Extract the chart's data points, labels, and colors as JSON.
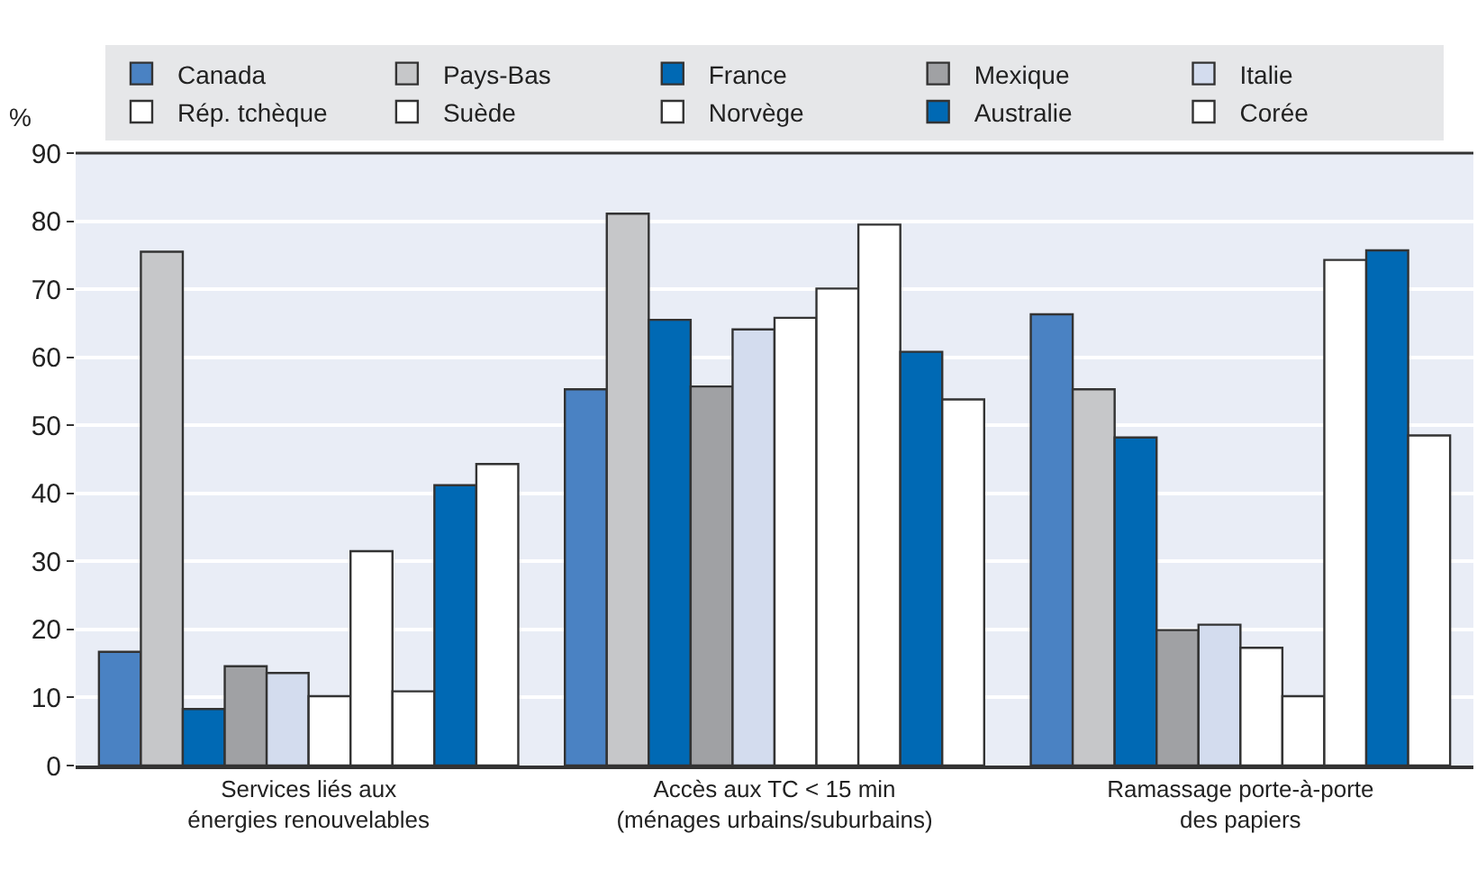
{
  "chart_data": {
    "type": "bar",
    "ylabel": "%",
    "categories": [
      "Services liés aux\nénergies renouvelables",
      "Accès aux TC < 15 min\n(ménages urbains/suburbains)",
      "Ramassage porte-à-porte\ndes papiers"
    ],
    "series": [
      {
        "name": "Canada",
        "color": "#4a82c3",
        "values": [
          16.7,
          55.3,
          66.3
        ]
      },
      {
        "name": "Pays-Bas",
        "color": "#c6c7c9",
        "values": [
          75.5,
          81.1,
          55.3
        ]
      },
      {
        "name": "France",
        "color": "#0069b4",
        "values": [
          8.3,
          65.5,
          48.2
        ]
      },
      {
        "name": "Mexique",
        "color": "#a0a1a4",
        "values": [
          14.6,
          55.7,
          19.9
        ]
      },
      {
        "name": "Italie",
        "color": "#d3dcee",
        "values": [
          13.6,
          64.1,
          20.7
        ]
      },
      {
        "name": "Rép. tchèque",
        "color": "#ffffff",
        "values": [
          10.2,
          65.8,
          17.3
        ]
      },
      {
        "name": "Suède",
        "color": "#ffffff",
        "values": [
          31.5,
          70.1,
          10.2
        ]
      },
      {
        "name": "Norvège",
        "color": "#ffffff",
        "values": [
          10.9,
          79.5,
          74.3
        ]
      },
      {
        "name": "Australie",
        "color": "#0069b4",
        "values": [
          41.2,
          60.8,
          75.7
        ]
      },
      {
        "name": "Corée",
        "color": "#ffffff",
        "values": [
          44.3,
          53.8,
          48.5
        ]
      }
    ],
    "ylim": [
      0,
      90
    ],
    "yticks": [
      0,
      10,
      20,
      30,
      40,
      50,
      60,
      70,
      80,
      90
    ],
    "grid": "y",
    "legend": "top"
  }
}
